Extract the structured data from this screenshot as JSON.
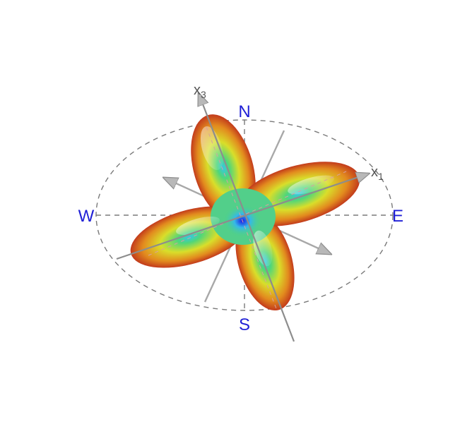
{
  "compass": {
    "north": "N",
    "south": "S",
    "east": "E",
    "west": "W"
  },
  "axes": {
    "x1": {
      "symbol": "x",
      "subscript": "1"
    },
    "x3": {
      "symbol": "x",
      "subscript": "3"
    }
  },
  "colors": {
    "compass_label": "#1f1fd6",
    "dashed_circle": "#7a7a7a",
    "axis": "#9a9a9a",
    "lobe_tip": "#c41e1e",
    "lobe_mid": "#e8d21c",
    "lobe_base": "#4fd67a",
    "center": "#33c8e6",
    "center_core": "#2020e0"
  }
}
